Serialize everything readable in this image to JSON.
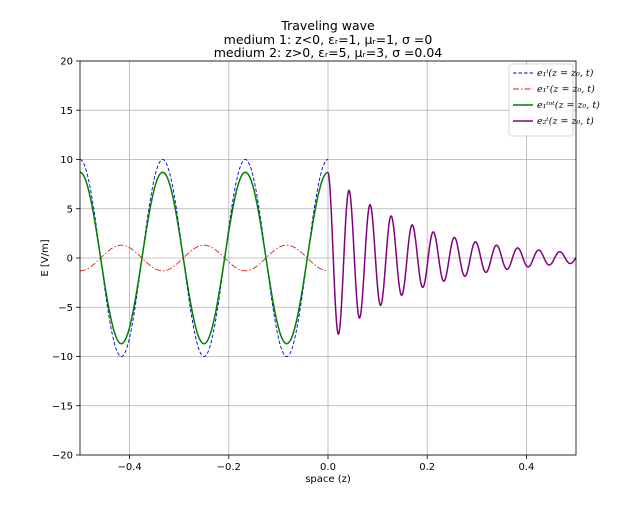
{
  "chart_data": {
    "type": "line",
    "title": "Traveling wave",
    "subtitle_lines": [
      "medium 1: z<0, εᵣ=1, μᵣ=1, σ =0",
      "medium 2: z>0, εᵣ=5, μᵣ=3, σ =0.04"
    ],
    "xlabel": "space (z)",
    "ylabel": "E [V/m]",
    "xlim": [
      -0.5,
      0.5
    ],
    "ylim": [
      -20,
      20
    ],
    "x_ticks": [
      -0.4,
      -0.2,
      0.0,
      0.2,
      0.4
    ],
    "x_tick_labels": [
      "−0.4",
      "−0.2",
      "0.0",
      "0.2",
      "0.4"
    ],
    "y_ticks": [
      -20,
      -15,
      -10,
      -5,
      0,
      5,
      10,
      15,
      20
    ],
    "y_tick_labels": [
      "−20",
      "−15",
      "−10",
      "−5",
      "0",
      "5",
      "10",
      "15",
      "20"
    ],
    "grid": true,
    "legend_position": "top-right",
    "series": [
      {
        "name": "e₁ⁱ(z = z₀, t)",
        "color": "#0000cc",
        "style": "dashed",
        "z_range": [
          -0.5,
          0.0
        ],
        "amplitude": 10.0,
        "wavelength": 0.1667,
        "value_at_z0": 10.0
      },
      {
        "name": "e₁ʳ(z = z₀, t)",
        "color": "#e41a1c",
        "style": "dashdot",
        "z_range": [
          -0.5,
          0.0
        ],
        "amplitude": 1.3,
        "wavelength": 0.1667,
        "value_at_z0": -1.3
      },
      {
        "name": "e₁ᵗᵒᵗ(z = z₀, t)",
        "color": "#008000",
        "style": "solid",
        "z_range": [
          -0.5,
          0.0
        ],
        "amplitude": 8.7,
        "wavelength": 0.1667,
        "value_at_z0": 8.7
      },
      {
        "name": "e₂ᵗ(z = z₀, t)",
        "color": "#800080",
        "style": "solid",
        "z_range": [
          0.0,
          0.5
        ],
        "amplitude": 8.7,
        "wavelength": 0.0425,
        "attenuation": 5.6,
        "value_at_z0": 8.7
      }
    ]
  }
}
